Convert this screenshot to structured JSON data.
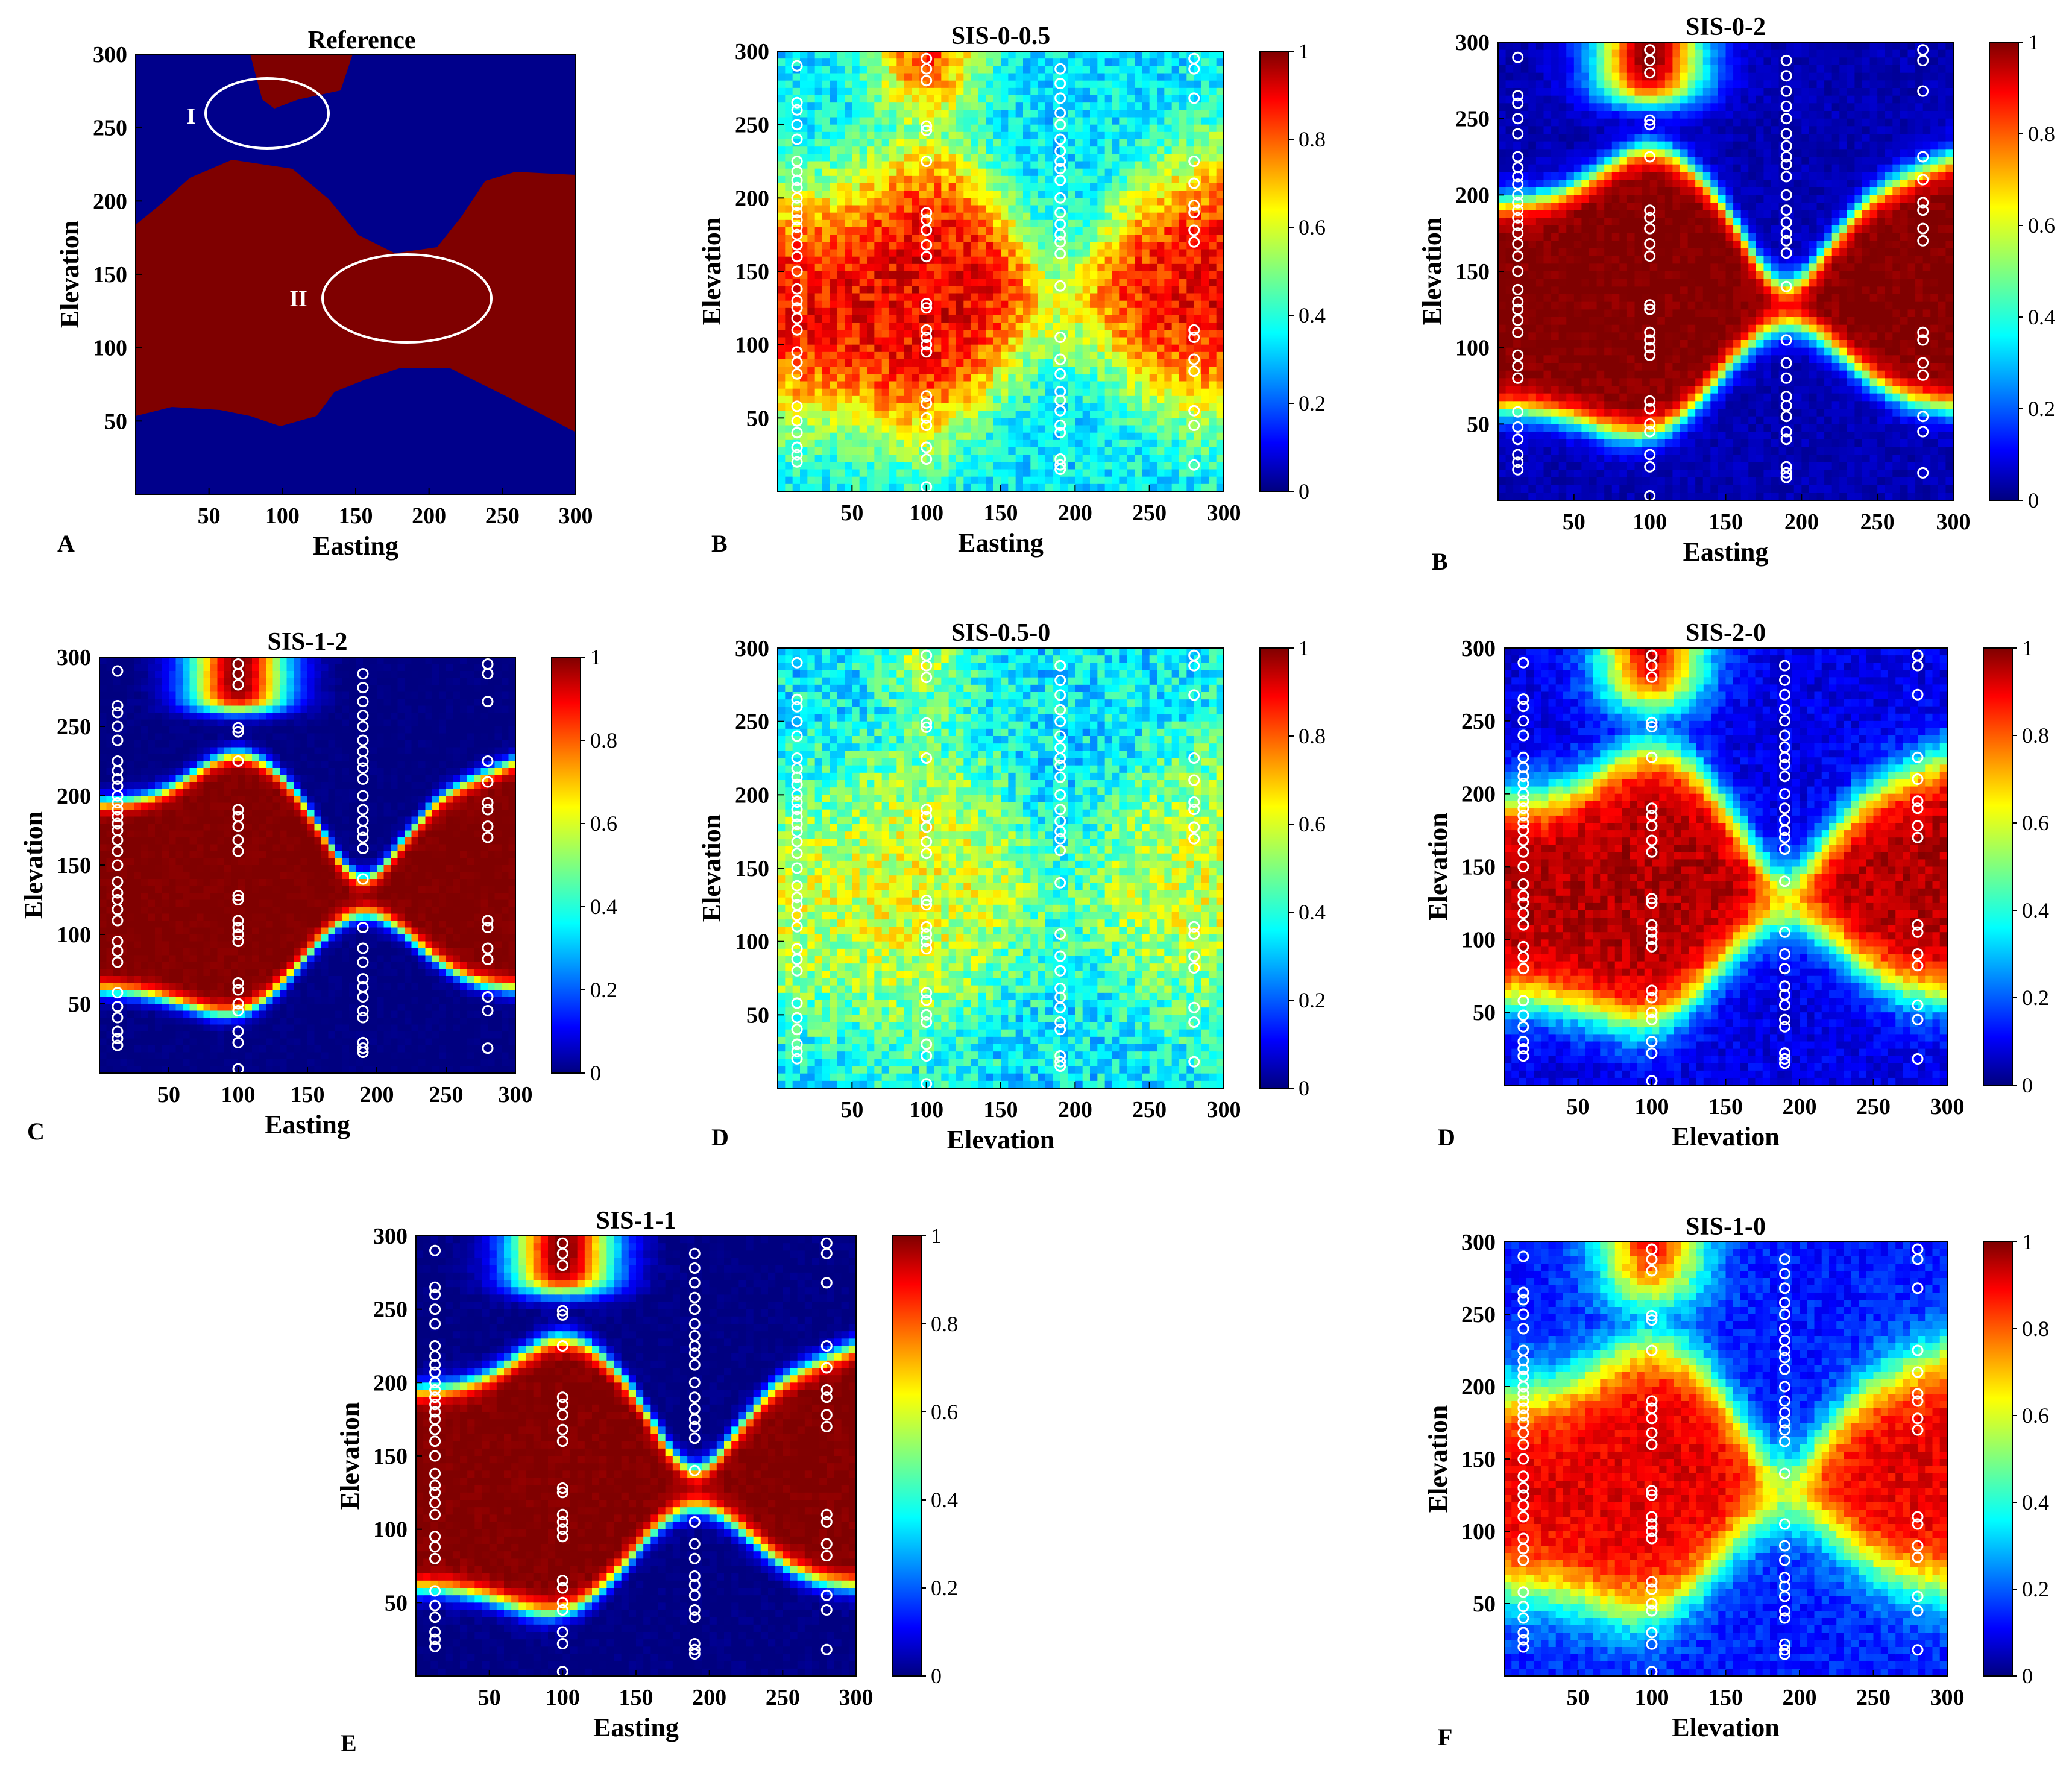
{
  "figure": {
    "description_domain": "Probability maps from SIS simulations with well data",
    "colorscale": {
      "name": "jet",
      "stops": [
        "#00007f",
        "#0000ff",
        "#007fff",
        "#00ffff",
        "#7fff7f",
        "#ffff00",
        "#ff7f00",
        "#ff0000",
        "#7f0000"
      ],
      "ticks": [
        "0",
        "0.2",
        "0.4",
        "0.6",
        "0.8",
        "1"
      ]
    },
    "reference_colors": {
      "background": "#00008b",
      "facies": "#7f0000"
    },
    "marker_color": "#ffffff"
  },
  "chart_data": [
    {
      "id": "A",
      "type": "heatmap",
      "letter": "A",
      "title": "Reference",
      "xlabel": "Easting",
      "ylabel": "Elevation",
      "xlim": [
        0,
        300
      ],
      "ylim": [
        0,
        300
      ],
      "xticks": [
        "50",
        "100",
        "150",
        "200",
        "250",
        "300"
      ],
      "yticks": [
        "50",
        "100",
        "150",
        "200",
        "250",
        "300"
      ],
      "colorbar": false,
      "annotations": [
        {
          "label": "I",
          "cx": 95,
          "cy": 258,
          "rx": 42,
          "ry": 24
        },
        {
          "label": "II",
          "cx": 185,
          "cy": 138,
          "rx": 58,
          "ry": 30
        }
      ]
    },
    {
      "id": "B1",
      "type": "heatmap",
      "letter": "B",
      "title": "SIS-0-0.5",
      "xlabel": "Easting",
      "ylabel": "Elevation",
      "xlim": [
        0,
        300
      ],
      "ylim": [
        0,
        300
      ],
      "xticks": [
        "50",
        "100",
        "150",
        "200",
        "250",
        "300"
      ],
      "yticks": [
        "50",
        "100",
        "150",
        "200",
        "250",
        "300"
      ],
      "colorbar": true
    },
    {
      "id": "B2",
      "type": "heatmap",
      "letter": "B",
      "title": "SIS-0-2",
      "xlabel": "Easting",
      "ylabel": "Elevation",
      "xlim": [
        0,
        300
      ],
      "ylim": [
        0,
        300
      ],
      "xticks": [
        "50",
        "100",
        "150",
        "200",
        "250",
        "300"
      ],
      "yticks": [
        "50",
        "100",
        "150",
        "200",
        "250",
        "300"
      ],
      "colorbar": true
    },
    {
      "id": "C",
      "type": "heatmap",
      "letter": "C",
      "title": "SIS-1-2",
      "xlabel": "Easting",
      "ylabel": "Elevation",
      "xlim": [
        0,
        300
      ],
      "ylim": [
        0,
        300
      ],
      "xticks": [
        "50",
        "100",
        "150",
        "200",
        "250",
        "300"
      ],
      "yticks": [
        "50",
        "100",
        "150",
        "200",
        "250",
        "300"
      ],
      "colorbar": true
    },
    {
      "id": "D1",
      "type": "heatmap",
      "letter": "D",
      "title": "SIS-0.5-0",
      "xlabel": "Elevation",
      "ylabel": "Elevation",
      "xlim": [
        0,
        300
      ],
      "ylim": [
        0,
        300
      ],
      "xticks": [
        "50",
        "100",
        "150",
        "200",
        "250",
        "300"
      ],
      "yticks": [
        "50",
        "100",
        "150",
        "200",
        "250",
        "300"
      ],
      "colorbar": true
    },
    {
      "id": "D2",
      "type": "heatmap",
      "letter": "D",
      "title": "SIS-2-0",
      "xlabel": "Elevation",
      "ylabel": "Elevation",
      "xlim": [
        0,
        300
      ],
      "ylim": [
        0,
        300
      ],
      "xticks": [
        "50",
        "100",
        "150",
        "200",
        "250",
        "300"
      ],
      "yticks": [
        "50",
        "100",
        "150",
        "200",
        "250",
        "300"
      ],
      "colorbar": true
    },
    {
      "id": "E",
      "type": "heatmap",
      "letter": "E",
      "title": "SIS-1-1",
      "xlabel": "Easting",
      "ylabel": "Elevation",
      "xlim": [
        0,
        300
      ],
      "ylim": [
        0,
        300
      ],
      "xticks": [
        "50",
        "100",
        "150",
        "200",
        "250",
        "300"
      ],
      "yticks": [
        "50",
        "100",
        "150",
        "200",
        "250",
        "300"
      ],
      "colorbar": true
    },
    {
      "id": "F",
      "type": "heatmap",
      "letter": "F",
      "title": "SIS-1-0",
      "xlabel": "Elevation",
      "ylabel": "Elevation",
      "xlim": [
        0,
        300
      ],
      "ylim": [
        0,
        300
      ],
      "xticks": [
        "50",
        "100",
        "150",
        "200",
        "250",
        "300"
      ],
      "yticks": [
        "50",
        "100",
        "150",
        "200",
        "250",
        "300"
      ],
      "colorbar": true
    }
  ],
  "wells": [
    {
      "x": 13,
      "y": [
        20,
        25,
        30,
        40,
        48,
        58,
        80,
        88,
        95,
        110,
        118,
        125,
        130,
        138,
        150,
        160,
        168,
        175,
        180,
        185,
        190,
        195,
        200,
        207,
        212,
        218,
        225,
        240,
        250,
        260,
        265,
        290
      ]
    },
    {
      "x": 100,
      "y": [
        3,
        22,
        30,
        45,
        50,
        60,
        65,
        95,
        100,
        105,
        110,
        125,
        128,
        160,
        168,
        178,
        185,
        190,
        225,
        246,
        249,
        280,
        288,
        295
      ]
    },
    {
      "x": 190,
      "y": [
        15,
        18,
        22,
        40,
        45,
        55,
        62,
        68,
        80,
        90,
        105,
        140,
        162,
        170,
        175,
        182,
        190,
        200,
        212,
        220,
        225,
        232,
        240,
        250,
        258,
        268,
        278,
        288
      ]
    },
    {
      "x": 280,
      "y": [
        18,
        45,
        55,
        82,
        90,
        105,
        110,
        170,
        178,
        190,
        195,
        210,
        225,
        268,
        288,
        295
      ]
    }
  ]
}
